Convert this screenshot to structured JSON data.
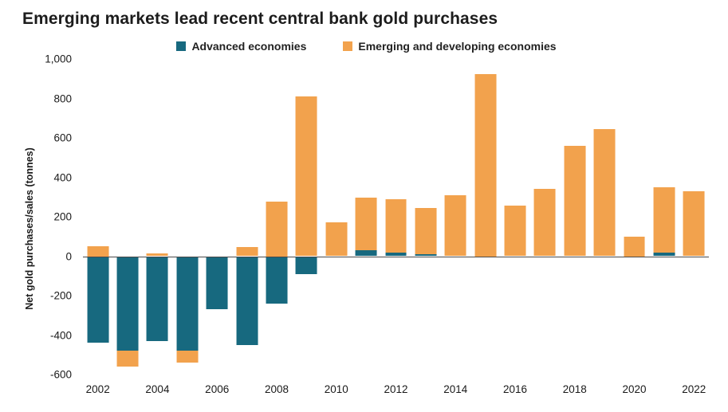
{
  "title": "Emerging markets lead recent central bank gold purchases",
  "legend": [
    {
      "label": "Advanced economies",
      "color": "#17697f"
    },
    {
      "label": "Emerging and developing economies",
      "color": "#f2a24d"
    }
  ],
  "chart_data": {
    "type": "bar",
    "stacked": true,
    "title": "Emerging markets lead recent central bank gold purchases",
    "xlabel": "",
    "ylabel": "Net gold purchases/sales (tonnes)",
    "ylim": [
      -600,
      1000
    ],
    "ytick_step": 200,
    "grid": false,
    "legend_position": "top-center",
    "categories": [
      2002,
      2003,
      2004,
      2005,
      2006,
      2007,
      2008,
      2009,
      2010,
      2011,
      2012,
      2013,
      2014,
      2015,
      2016,
      2017,
      2018,
      2019,
      2020,
      2021,
      2022
    ],
    "xtick_labels": [
      "2002",
      "2004",
      "2006",
      "2008",
      "2010",
      "2012",
      "2014",
      "2016",
      "2018",
      "2020",
      "2022"
    ],
    "series": [
      {
        "name": "Advanced economies",
        "color": "#17697f",
        "values": [
          -440,
          -480,
          -430,
          -480,
          -270,
          -450,
          -240,
          -90,
          -5,
          30,
          20,
          10,
          0,
          0,
          -5,
          0,
          0,
          0,
          0,
          20,
          0
        ]
      },
      {
        "name": "Emerging and developing economies",
        "color": "#f2a24d",
        "values": [
          50,
          -80,
          15,
          -60,
          0,
          45,
          275,
          810,
          170,
          265,
          270,
          235,
          310,
          925,
          255,
          340,
          560,
          645,
          100,
          330,
          330
        ]
      }
    ]
  }
}
